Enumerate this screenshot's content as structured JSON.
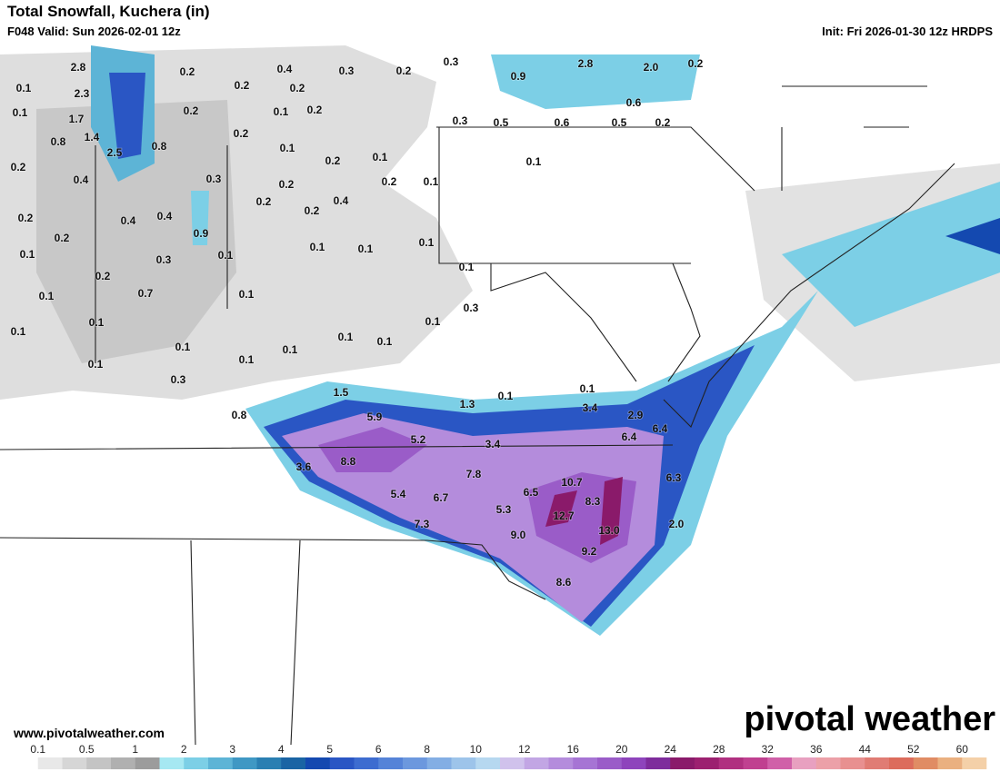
{
  "header": {
    "title": "Total Snowfall, Kuchera (in)",
    "valid": "F048 Valid: Sun 2026-02-01 12z",
    "init": "Init: Fri 2026-01-30 12z HRDPS"
  },
  "point_labels": [
    "2.8",
    "0.2",
    "0.4",
    "0.3",
    "0.2",
    "0.3",
    "2.8",
    "2.0",
    "0.2",
    "0.9",
    "0.1",
    "2.3",
    "0.2",
    "0.2",
    "0.6",
    "0.1",
    "1.7",
    "0.2",
    "0.1",
    "0.2",
    "0.3",
    "0.5",
    "0.6",
    "0.5",
    "0.2",
    "1.4",
    "0.8",
    "0.8",
    "0.2",
    "0.1",
    "2.5",
    "0.2",
    "0.1",
    "0.1",
    "0.2",
    "0.4",
    "0.3",
    "0.2",
    "0.2",
    "0.1",
    "0.2",
    "0.4",
    "0.4",
    "0.2",
    "0.2",
    "0.4",
    "0.2",
    "0.9",
    "0.1",
    "0.1",
    "0.3",
    "0.1",
    "0.1",
    "0.1",
    "0.1",
    "0.2",
    "0.1",
    "0.7",
    "0.1",
    "0.3",
    "0.1",
    "0.1",
    "0.1",
    "0.1",
    "0.1",
    "0.1",
    "0.1",
    "0.1",
    "0.1",
    "0.3",
    "1.5",
    "0.1",
    "1.3",
    "0.1",
    "3.4",
    "0.8",
    "5.9",
    "2.9",
    "6.4",
    "5.2",
    "3.4",
    "6.4",
    "3.6",
    "8.8",
    "7.8",
    "6.3",
    "10.7",
    "5.4",
    "6.7",
    "6.5",
    "8.3",
    "5.3",
    "12.7",
    "7.3",
    "2.0",
    "9.0",
    "13.0",
    "9.2",
    "8.6"
  ],
  "footer": {
    "website": "www.pivotalweather.com",
    "logo": "pivotal weather"
  },
  "colorbar": {
    "labels": [
      0.1,
      0.5,
      1,
      2,
      3,
      4,
      5,
      6,
      8,
      10,
      12,
      16,
      20,
      24,
      28,
      32,
      36,
      44,
      52,
      60
    ],
    "colors": [
      "#ffffff",
      "#e8e8e8",
      "#d6d6d6",
      "#c4c4c4",
      "#b0b0b0",
      "#9c9c9c",
      "#a6e8f2",
      "#7ccfe6",
      "#5db4d6",
      "#3f98c4",
      "#2a7fb2",
      "#1a64a4",
      "#1449b0",
      "#2a56c4",
      "#3d6cd0",
      "#5583d8",
      "#6c98de",
      "#83aee4",
      "#9dc4ea",
      "#b6d8f0",
      "#d0c2ec",
      "#c2a6e4",
      "#b48cdc",
      "#a674d4",
      "#9a5cc8",
      "#8e44bc",
      "#7e2c9c",
      "#8a1a6a",
      "#9c2070",
      "#b03080",
      "#c04090",
      "#d060a8",
      "#e8a0c0",
      "#eca0a8",
      "#e89090",
      "#e07c74",
      "#dc6c5c",
      "#e08c64",
      "#eab080",
      "#f4d0a8"
    ]
  }
}
